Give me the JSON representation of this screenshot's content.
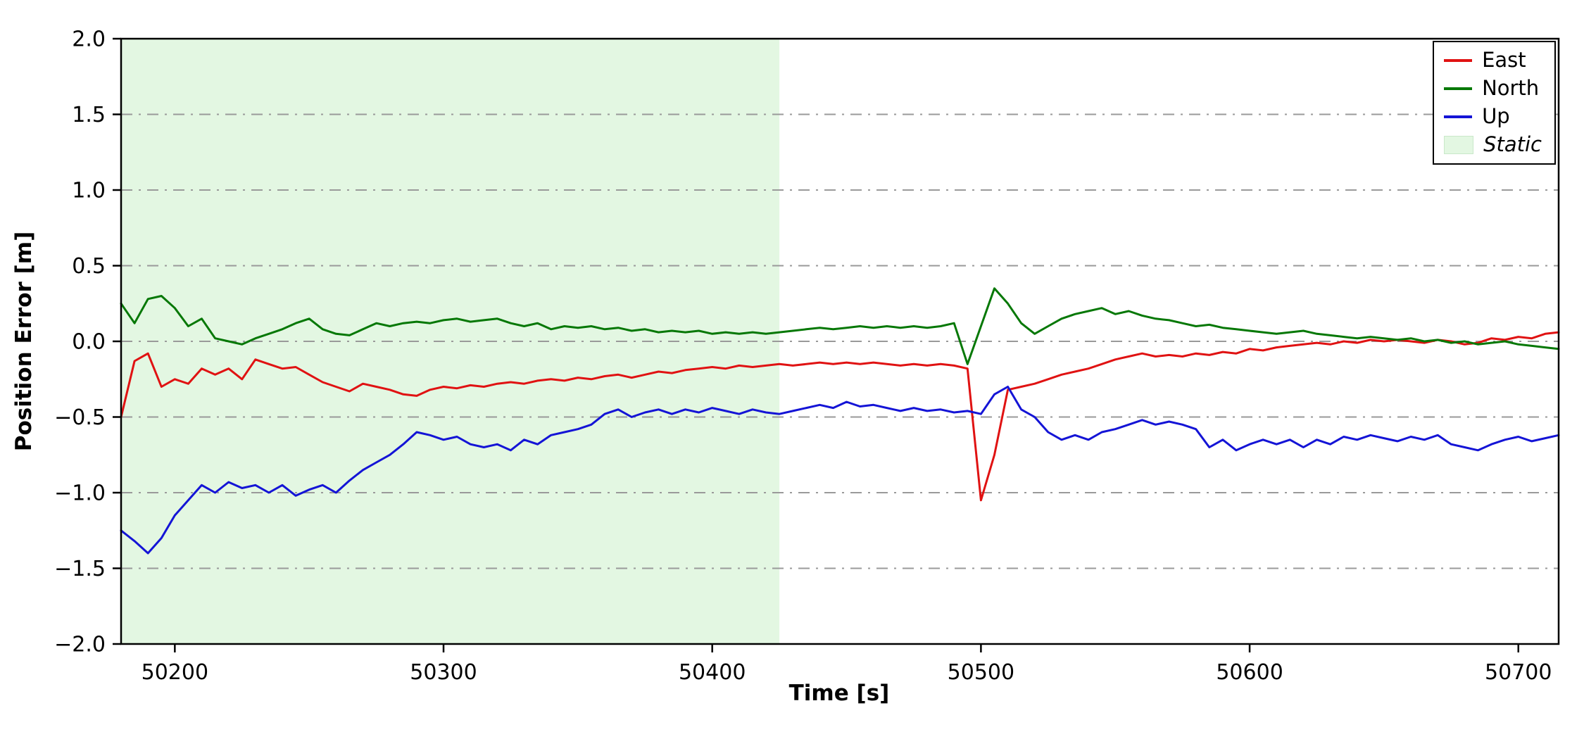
{
  "chart_data": {
    "type": "line",
    "title": "",
    "xlabel": "Time [s]",
    "ylabel": "Position Error [m]",
    "xlim": [
      50180,
      50715
    ],
    "ylim": [
      -2.0,
      2.0
    ],
    "xticks": [
      50200,
      50300,
      50400,
      50500,
      50600,
      50700
    ],
    "yticks": [
      -2.0,
      -1.5,
      -1.0,
      -0.5,
      0.0,
      0.5,
      1.0,
      1.5,
      2.0
    ],
    "grid": "horizontal dash-dot gray",
    "legend_position": "upper right",
    "x_start": 50180,
    "x_step": 5,
    "series": [
      {
        "name": "East",
        "color": "#e01212",
        "values": [
          -0.5,
          -0.13,
          -0.08,
          -0.3,
          -0.25,
          -0.28,
          -0.18,
          -0.22,
          -0.18,
          -0.25,
          -0.12,
          -0.15,
          -0.18,
          -0.17,
          -0.22,
          -0.27,
          -0.3,
          -0.33,
          -0.28,
          -0.3,
          -0.32,
          -0.35,
          -0.36,
          -0.32,
          -0.3,
          -0.31,
          -0.29,
          -0.3,
          -0.28,
          -0.27,
          -0.28,
          -0.26,
          -0.25,
          -0.26,
          -0.24,
          -0.25,
          -0.23,
          -0.22,
          -0.24,
          -0.22,
          -0.2,
          -0.21,
          -0.19,
          -0.18,
          -0.17,
          -0.18,
          -0.16,
          -0.17,
          -0.16,
          -0.15,
          -0.16,
          -0.15,
          -0.14,
          -0.15,
          -0.14,
          -0.15,
          -0.14,
          -0.15,
          -0.16,
          -0.15,
          -0.16,
          -0.15,
          -0.16,
          -0.18,
          -1.05,
          -0.75,
          -0.32,
          -0.3,
          -0.28,
          -0.25,
          -0.22,
          -0.2,
          -0.18,
          -0.15,
          -0.12,
          -0.1,
          -0.08,
          -0.1,
          -0.09,
          -0.1,
          -0.08,
          -0.09,
          -0.07,
          -0.08,
          -0.05,
          -0.06,
          -0.04,
          -0.03,
          -0.02,
          -0.01,
          -0.02,
          0.0,
          -0.01,
          0.01,
          0.0,
          0.01,
          0.0,
          -0.01,
          0.01,
          0.0,
          -0.02,
          -0.01,
          0.02,
          0.01,
          0.03,
          0.02,
          0.05,
          0.06
        ]
      },
      {
        "name": "North",
        "color": "#067806",
        "values": [
          0.25,
          0.12,
          0.28,
          0.3,
          0.22,
          0.1,
          0.15,
          0.02,
          0.0,
          -0.02,
          0.02,
          0.05,
          0.08,
          0.12,
          0.15,
          0.08,
          0.05,
          0.04,
          0.08,
          0.12,
          0.1,
          0.12,
          0.13,
          0.12,
          0.14,
          0.15,
          0.13,
          0.14,
          0.15,
          0.12,
          0.1,
          0.12,
          0.08,
          0.1,
          0.09,
          0.1,
          0.08,
          0.09,
          0.07,
          0.08,
          0.06,
          0.07,
          0.06,
          0.07,
          0.05,
          0.06,
          0.05,
          0.06,
          0.05,
          0.06,
          0.07,
          0.08,
          0.09,
          0.08,
          0.09,
          0.1,
          0.09,
          0.1,
          0.09,
          0.1,
          0.09,
          0.1,
          0.12,
          -0.15,
          0.1,
          0.35,
          0.25,
          0.12,
          0.05,
          0.1,
          0.15,
          0.18,
          0.2,
          0.22,
          0.18,
          0.2,
          0.17,
          0.15,
          0.14,
          0.12,
          0.1,
          0.11,
          0.09,
          0.08,
          0.07,
          0.06,
          0.05,
          0.06,
          0.07,
          0.05,
          0.04,
          0.03,
          0.02,
          0.03,
          0.02,
          0.01,
          0.02,
          0.0,
          0.01,
          -0.01,
          0.0,
          -0.02,
          -0.01,
          0.0,
          -0.02,
          -0.03,
          -0.04,
          -0.05
        ]
      },
      {
        "name": "Up",
        "color": "#1414d6",
        "values": [
          -1.25,
          -1.32,
          -1.4,
          -1.3,
          -1.15,
          -1.05,
          -0.95,
          -1.0,
          -0.93,
          -0.97,
          -0.95,
          -1.0,
          -0.95,
          -1.02,
          -0.98,
          -0.95,
          -1.0,
          -0.92,
          -0.85,
          -0.8,
          -0.75,
          -0.68,
          -0.6,
          -0.62,
          -0.65,
          -0.63,
          -0.68,
          -0.7,
          -0.68,
          -0.72,
          -0.65,
          -0.68,
          -0.62,
          -0.6,
          -0.58,
          -0.55,
          -0.48,
          -0.45,
          -0.5,
          -0.47,
          -0.45,
          -0.48,
          -0.45,
          -0.47,
          -0.44,
          -0.46,
          -0.48,
          -0.45,
          -0.47,
          -0.48,
          -0.46,
          -0.44,
          -0.42,
          -0.44,
          -0.4,
          -0.43,
          -0.42,
          -0.44,
          -0.46,
          -0.44,
          -0.46,
          -0.45,
          -0.47,
          -0.46,
          -0.48,
          -0.35,
          -0.3,
          -0.45,
          -0.5,
          -0.6,
          -0.65,
          -0.62,
          -0.65,
          -0.6,
          -0.58,
          -0.55,
          -0.52,
          -0.55,
          -0.53,
          -0.55,
          -0.58,
          -0.7,
          -0.65,
          -0.72,
          -0.68,
          -0.65,
          -0.68,
          -0.65,
          -0.7,
          -0.65,
          -0.68,
          -0.63,
          -0.65,
          -0.62,
          -0.64,
          -0.66,
          -0.63,
          -0.65,
          -0.62,
          -0.68,
          -0.7,
          -0.72,
          -0.68,
          -0.65,
          -0.63,
          -0.66,
          -0.64,
          -0.62
        ]
      }
    ],
    "regions": [
      {
        "name": "Static",
        "color": "#e3f7e2",
        "x0": 50180,
        "x1": 50425
      }
    ]
  }
}
